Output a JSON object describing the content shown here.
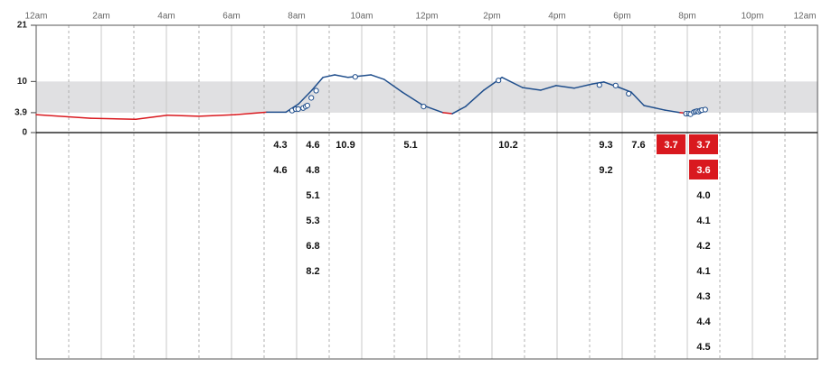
{
  "chart_data": {
    "type": "line",
    "xlim": [
      0,
      24
    ],
    "xticks": [
      {
        "value": 0,
        "label": "12am"
      },
      {
        "value": 2,
        "label": "2am"
      },
      {
        "value": 4,
        "label": "4am"
      },
      {
        "value": 6,
        "label": "6am"
      },
      {
        "value": 8,
        "label": "8am"
      },
      {
        "value": 10,
        "label": "10am"
      },
      {
        "value": 12,
        "label": "12pm"
      },
      {
        "value": 14,
        "label": "2pm"
      },
      {
        "value": 16,
        "label": "4pm"
      },
      {
        "value": 18,
        "label": "6pm"
      },
      {
        "value": 20,
        "label": "8pm"
      },
      {
        "value": 22,
        "label": "10pm"
      },
      {
        "value": 24,
        "label": "12am"
      }
    ],
    "minor_xticks": [
      1,
      3,
      5,
      7,
      9,
      11,
      13,
      15,
      17,
      19,
      21,
      23
    ],
    "ylim": [
      0,
      21
    ],
    "yticks": [
      0,
      3.9,
      10,
      21
    ],
    "target_range": [
      3.9,
      10
    ],
    "grid": true,
    "line_color": "#1f4e8c",
    "low_color": "#d9191f",
    "x": [
      0,
      1.67,
      3.06,
      4.03,
      5,
      6.11,
      7.08,
      7.67,
      8.06,
      8.47,
      8.81,
      9.17,
      9.58,
      10.28,
      10.69,
      11.25,
      11.89,
      12.5,
      12.78,
      13.19,
      13.75,
      14.31,
      14.94,
      15.5,
      15.97,
      16.53,
      17.08,
      17.44,
      17.92,
      18.28,
      18.67,
      19.31,
      19.78,
      20.14,
      20.5
    ],
    "values": [
      3.5,
      2.8,
      2.6,
      3.4,
      3.2,
      3.5,
      4.0,
      4.0,
      5.6,
      8.3,
      10.8,
      11.3,
      10.8,
      11.3,
      10.4,
      7.9,
      5.3,
      3.9,
      3.7,
      5.1,
      8.3,
      10.8,
      8.8,
      8.3,
      9.2,
      8.7,
      9.5,
      9.9,
      8.8,
      7.9,
      5.3,
      4.4,
      3.9,
      3.7,
      4.8
    ],
    "readings": {
      "x": [
        7.86,
        7.97,
        8.05,
        8.2,
        8.28,
        8.33,
        8.45,
        8.6,
        9.8,
        11.9,
        14.2,
        17.3,
        17.8,
        18.2,
        19.96,
        20.05,
        20.1,
        20.2,
        20.25,
        20.3,
        20.35,
        20.4,
        20.45,
        20.55
      ],
      "values": [
        4.3,
        4.6,
        4.6,
        4.8,
        5.1,
        5.3,
        6.8,
        8.2,
        10.9,
        5.1,
        10.2,
        9.3,
        9.2,
        7.6,
        3.7,
        3.7,
        3.6,
        4.0,
        4.1,
        4.2,
        4.1,
        4.3,
        4.4,
        4.5
      ],
      "value_labels": [
        "4.3",
        "4.6",
        "4.6",
        "4.8",
        "5.1",
        "5.3",
        "6.8",
        "8.2",
        "10.9",
        "5.1",
        "10.2",
        "9.3",
        "9.2",
        "7.6",
        "3.7",
        "3.7",
        "3.6",
        "4.0",
        "4.1",
        "4.2",
        "4.1",
        "4.3",
        "4.4",
        "4.5"
      ]
    }
  }
}
